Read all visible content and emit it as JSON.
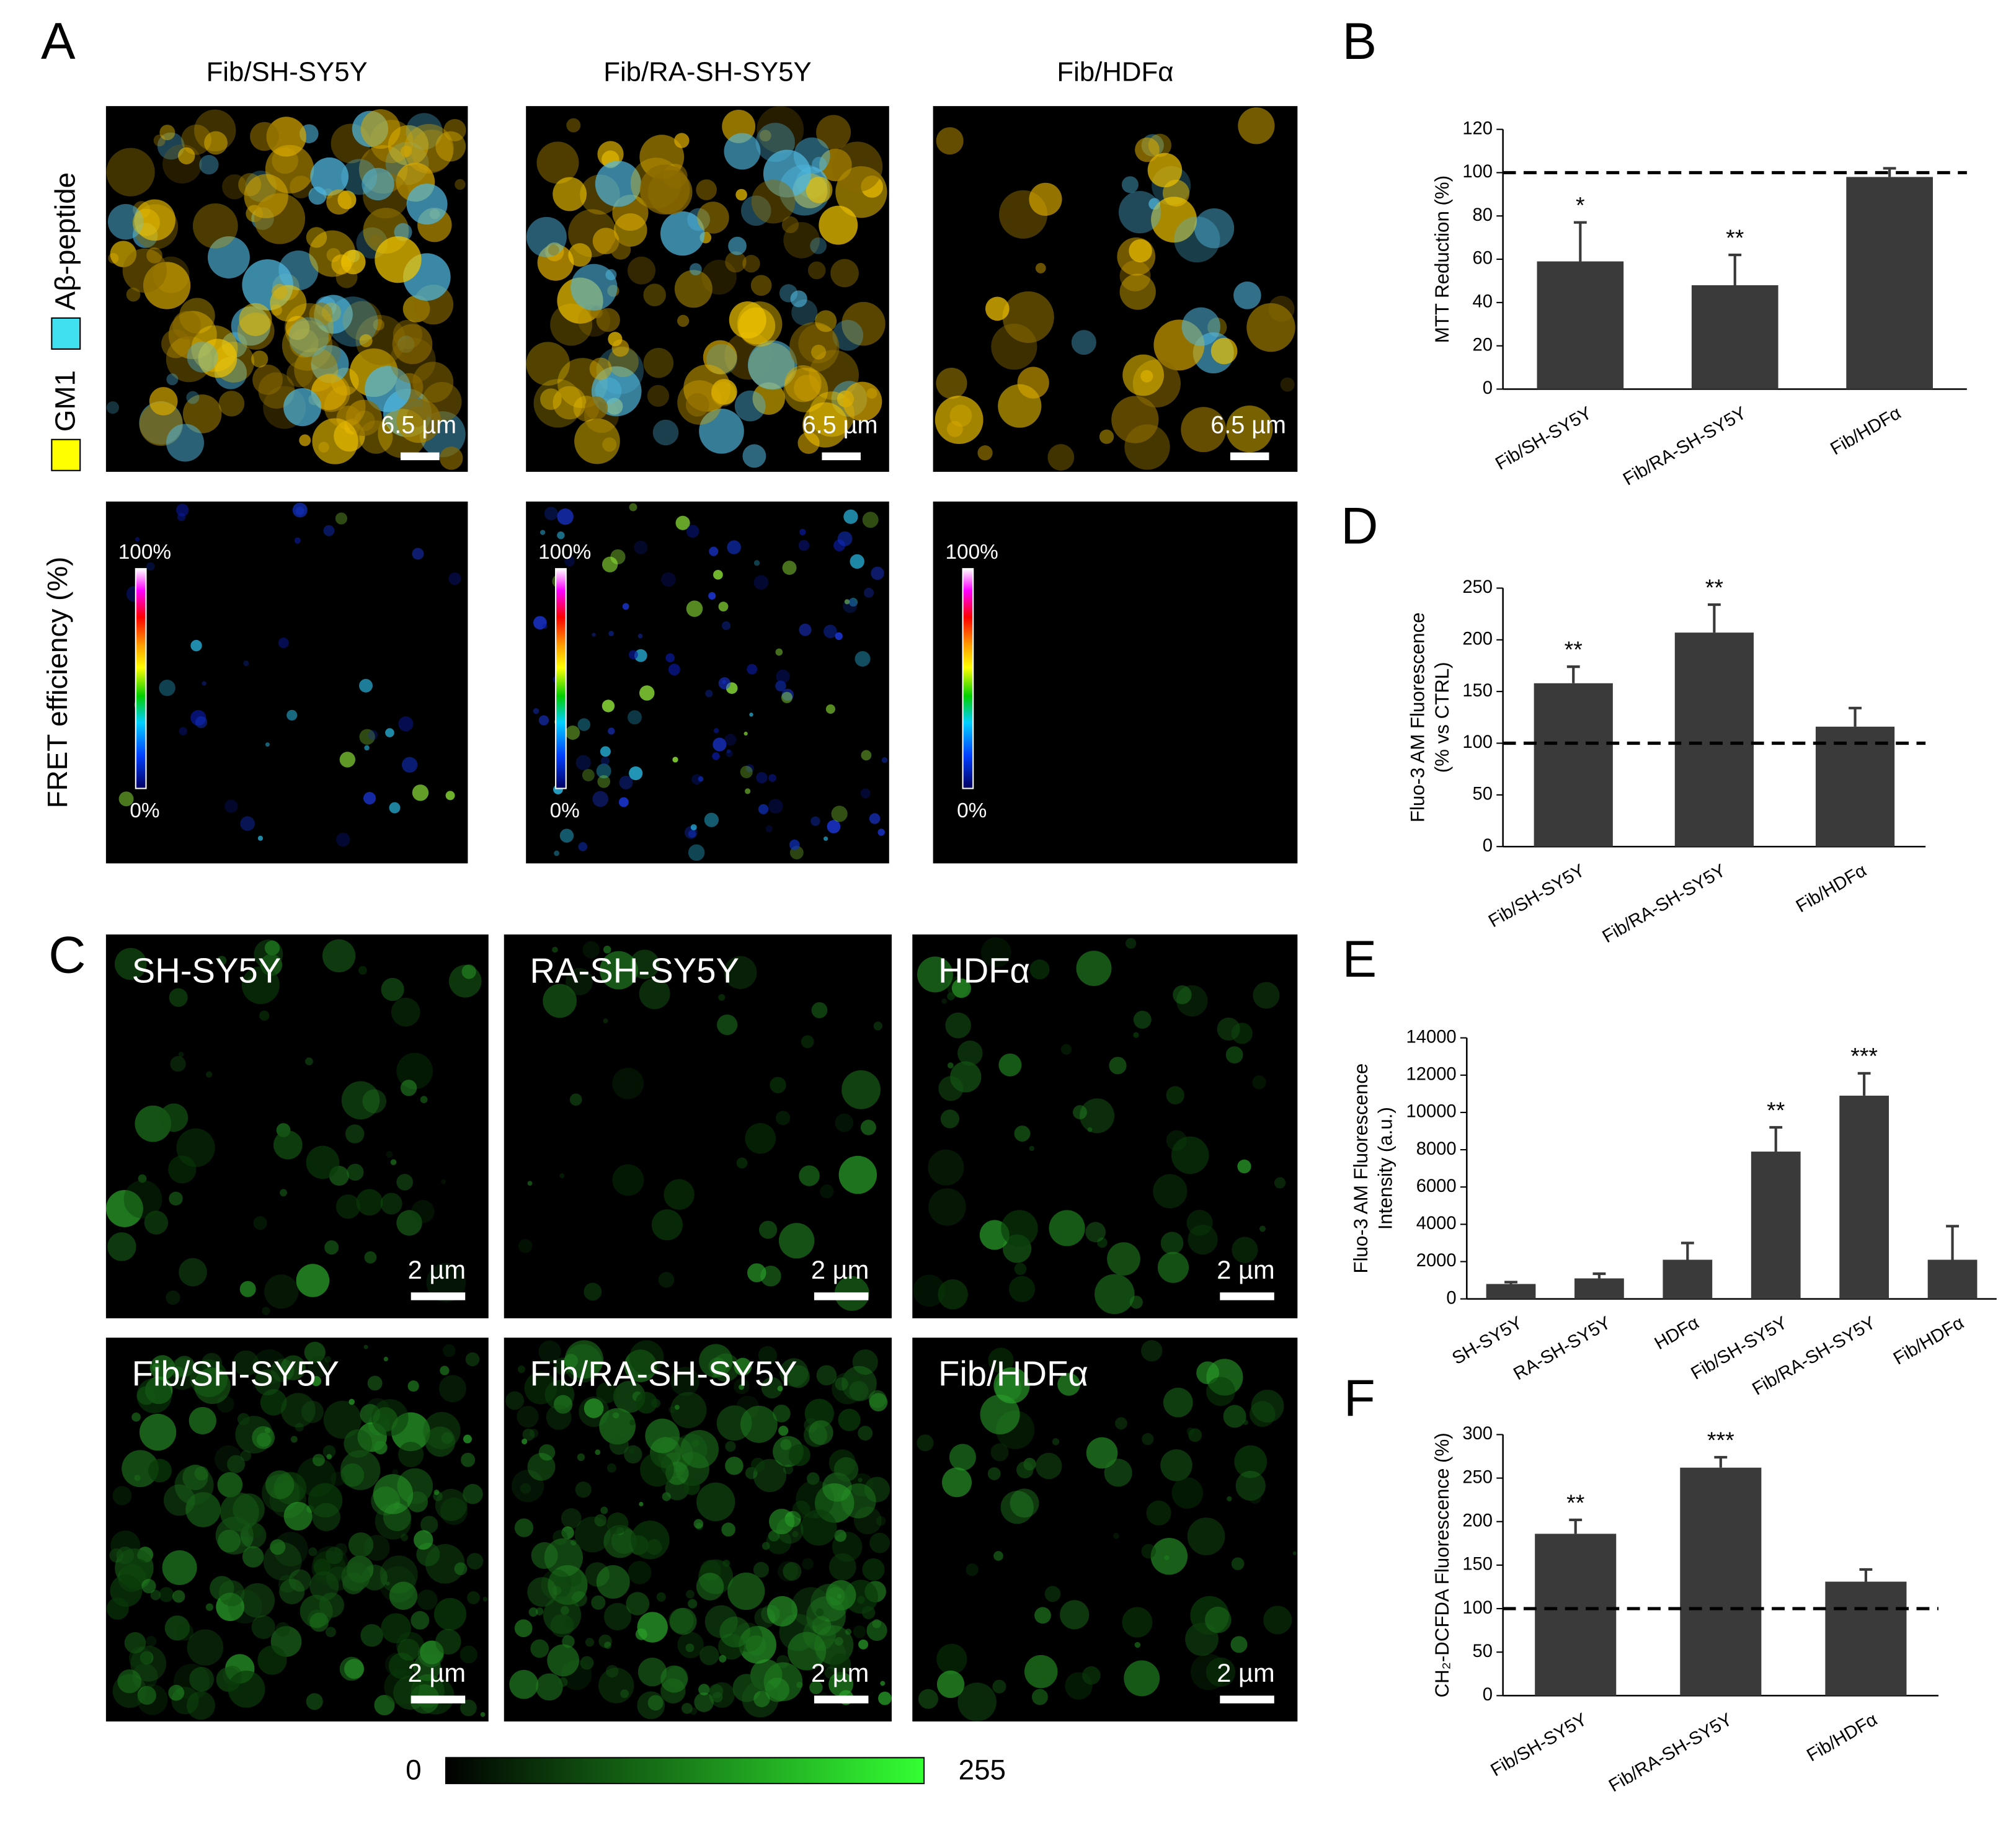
{
  "panel_labels": [
    "A",
    "B",
    "C",
    "D",
    "E",
    "F"
  ],
  "panel_a": {
    "titles": [
      "Fib/SH-SY5Y",
      "Fib/RA-SH-SY5Y",
      "Fib/HDFα"
    ],
    "legend": [
      "GM1",
      "Aβ-peptide"
    ],
    "fret_label": "FRET efficiency (%)",
    "scale_bar": "6.5 µm",
    "fret_scale": [
      "100%",
      "0%"
    ]
  },
  "panel_c": {
    "labels": [
      "SH-SY5Y",
      "RA-SH-SY5Y",
      "HDFα",
      "Fib/SH-SY5Y",
      "Fib/RA-SH-SY5Y",
      "Fib/HDFα"
    ],
    "scale_bar": "2 µm",
    "colorbar": [
      0,
      255
    ]
  },
  "chart_data": [
    {
      "type": "bar",
      "ylabel": [
        "MTT Reduction (%)"
      ],
      "categories": [
        "Fib/SH-SY5Y",
        "Fib/RA-SH-SY5Y",
        "Fib/HDFα"
      ],
      "values": [
        59,
        48,
        98
      ],
      "errors": [
        18,
        14,
        4
      ],
      "significance": [
        "*",
        "**",
        null
      ],
      "color": "#3a3a3a",
      "ylim": [
        0,
        120
      ],
      "yticks": [
        0,
        20,
        40,
        60,
        80,
        100,
        120
      ],
      "reference_line": 100
    },
    {
      "type": "bar",
      "ylabel": [
        "Fluo-3  AM Fluorescence",
        "(% vs CTRL)"
      ],
      "categories": [
        "Fib/SH-SY5Y",
        "Fib/RA-SH-SY5Y",
        "Fib/HDFα"
      ],
      "values": [
        158,
        207,
        116
      ],
      "errors": [
        16,
        27,
        18
      ],
      "significance": [
        "**",
        "**",
        null
      ],
      "color": "#3a3a3a",
      "ylim": [
        0,
        250
      ],
      "yticks": [
        0,
        50,
        100,
        150,
        200,
        250
      ],
      "reference_line": 100
    },
    {
      "type": "bar",
      "ylabel": [
        "Fluo-3  AM Fluorescence",
        "Intensity (a.u.)"
      ],
      "categories": [
        "SH-SY5Y",
        "RA-SH-SY5Y",
        "HDFα",
        "Fib/SH-SY5Y",
        "Fib/RA-SH-SY5Y",
        "Fib/HDFα"
      ],
      "values": [
        800,
        1100,
        2100,
        7900,
        10900,
        2100
      ],
      "errors": [
        100,
        250,
        900,
        1300,
        1200,
        1800
      ],
      "significance": [
        null,
        null,
        null,
        "**",
        "***",
        null
      ],
      "color": "#3a3a3a",
      "ylim": [
        0,
        14000
      ],
      "yticks": [
        0,
        2000,
        4000,
        6000,
        8000,
        10000,
        12000,
        14000
      ]
    },
    {
      "type": "bar",
      "ylabel": [
        "CH₂-DCFDA Fluorescence (%)"
      ],
      "categories": [
        "Fib/SH-SY5Y",
        "Fib/RA-SH-SY5Y",
        "Fib/HDFα"
      ],
      "values": [
        186,
        262,
        131
      ],
      "errors": [
        16,
        12,
        14
      ],
      "significance": [
        "**",
        "***",
        null
      ],
      "color": "#3a3a3a",
      "ylim": [
        0,
        300
      ],
      "yticks": [
        0,
        50,
        100,
        150,
        200,
        250,
        300
      ],
      "reference_line": 100
    }
  ]
}
